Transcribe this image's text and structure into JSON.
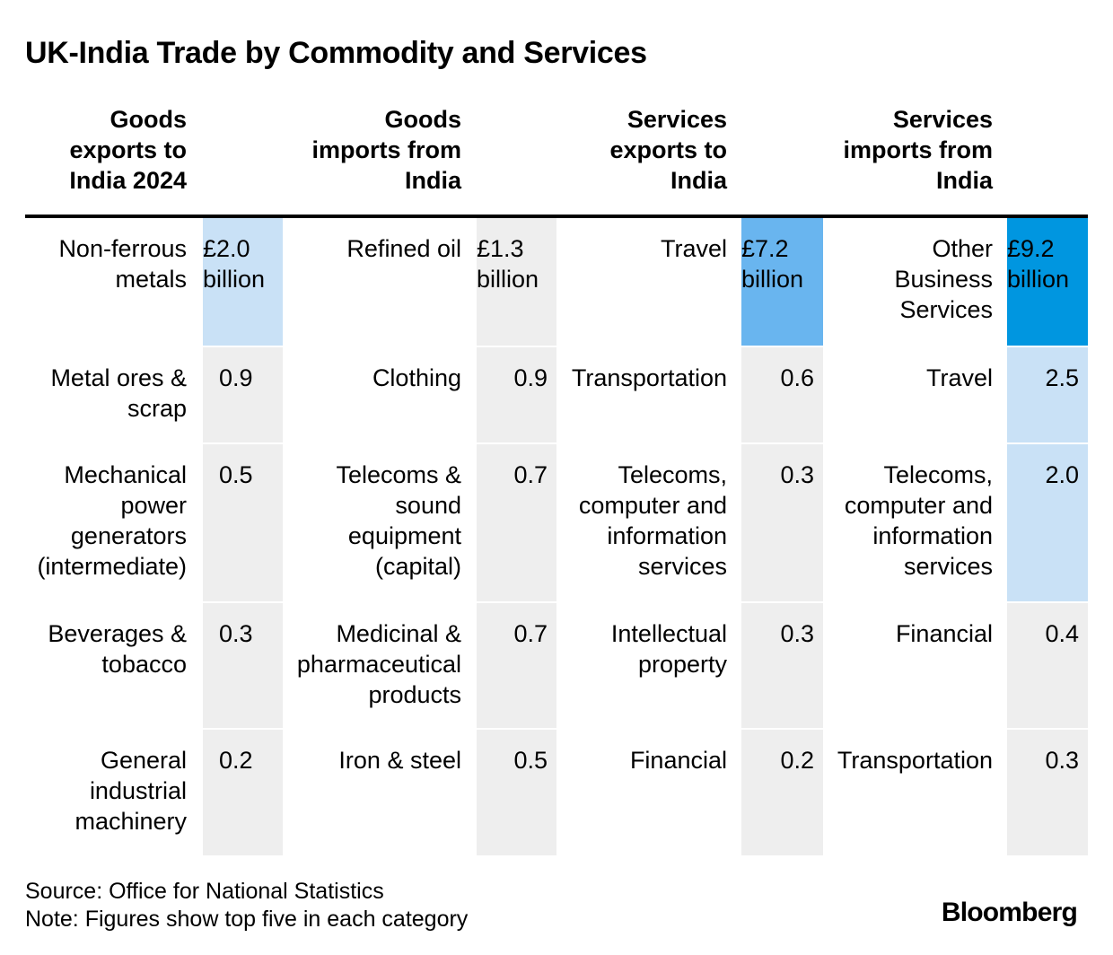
{
  "chart_data": {
    "type": "table",
    "title": "UK-India Trade by Commodity and Services",
    "columns": [
      {
        "header": "Goods exports to India 2024",
        "header_lines": [
          "Goods",
          "exports to",
          "India 2024"
        ],
        "rows": [
          {
            "label_lines": [
              "Non-ferrous",
              "metals"
            ],
            "value_lines": [
              "£2.0",
              "billion"
            ],
            "value": 2.0
          },
          {
            "label_lines": [
              "Metal ores &",
              "scrap"
            ],
            "value_lines": [
              "0.9"
            ],
            "value": 0.9
          },
          {
            "label_lines": [
              "Mechanical",
              "power",
              "generators",
              "(intermediate)"
            ],
            "value_lines": [
              "0.5"
            ],
            "value": 0.5
          },
          {
            "label_lines": [
              "Beverages &",
              "tobacco"
            ],
            "value_lines": [
              "0.3"
            ],
            "value": 0.3
          },
          {
            "label_lines": [
              "General",
              "industrial",
              "machinery"
            ],
            "value_lines": [
              "0.2"
            ],
            "value": 0.2
          }
        ]
      },
      {
        "header": "Goods imports from India",
        "header_lines": [
          "Goods",
          "imports from",
          "India"
        ],
        "rows": [
          {
            "label_lines": [
              "Refined oil"
            ],
            "value_lines": [
              "£1.3",
              "billion"
            ],
            "value": 1.3
          },
          {
            "label_lines": [
              "Clothing"
            ],
            "value_lines": [
              "0.9"
            ],
            "value": 0.9
          },
          {
            "label_lines": [
              "Telecoms &",
              "sound",
              "equipment",
              "(capital)"
            ],
            "value_lines": [
              "0.7"
            ],
            "value": 0.7
          },
          {
            "label_lines": [
              "Medicinal &",
              "pharmaceutical",
              "products"
            ],
            "value_lines": [
              "0.7"
            ],
            "value": 0.7
          },
          {
            "label_lines": [
              "Iron & steel"
            ],
            "value_lines": [
              "0.5"
            ],
            "value": 0.5
          }
        ]
      },
      {
        "header": "Services exports to India",
        "header_lines": [
          "Services",
          "exports to",
          "India"
        ],
        "rows": [
          {
            "label_lines": [
              "Travel"
            ],
            "value_lines": [
              "£7.2",
              "billion"
            ],
            "value": 7.2
          },
          {
            "label_lines": [
              "Transportation"
            ],
            "value_lines": [
              "0.6"
            ],
            "value": 0.6
          },
          {
            "label_lines": [
              "Telecoms,",
              "computer and",
              "information",
              "services"
            ],
            "value_lines": [
              "0.3"
            ],
            "value": 0.3
          },
          {
            "label_lines": [
              "Intellectual",
              "property"
            ],
            "value_lines": [
              "0.3"
            ],
            "value": 0.3
          },
          {
            "label_lines": [
              "Financial"
            ],
            "value_lines": [
              "0.2"
            ],
            "value": 0.2
          }
        ]
      },
      {
        "header": "Services imports from India",
        "header_lines": [
          "Services",
          "imports from",
          "India"
        ],
        "rows": [
          {
            "label_lines": [
              "Other",
              "Business",
              "Services"
            ],
            "value_lines": [
              "£9.2",
              "billion"
            ],
            "value": 9.2
          },
          {
            "label_lines": [
              "Travel"
            ],
            "value_lines": [
              "2.5"
            ],
            "value": 2.5
          },
          {
            "label_lines": [
              "Telecoms,",
              "computer and",
              "information",
              "services"
            ],
            "value_lines": [
              "2.0"
            ],
            "value": 2.0
          },
          {
            "label_lines": [
              "Financial"
            ],
            "value_lines": [
              "0.4"
            ],
            "value": 0.4
          },
          {
            "label_lines": [
              "Transportation"
            ],
            "value_lines": [
              "0.3"
            ],
            "value": 0.3
          }
        ]
      }
    ],
    "color_scale": {
      "empty": "#eeeeee",
      "light": "#c9e1f6",
      "medium": "#69b5ef",
      "dark": "#0096e0"
    },
    "grid": false
  },
  "footer": {
    "source": "Source: Office for National Statistics",
    "note": "Note: Figures show top five in each category",
    "logo": "Bloomberg"
  }
}
